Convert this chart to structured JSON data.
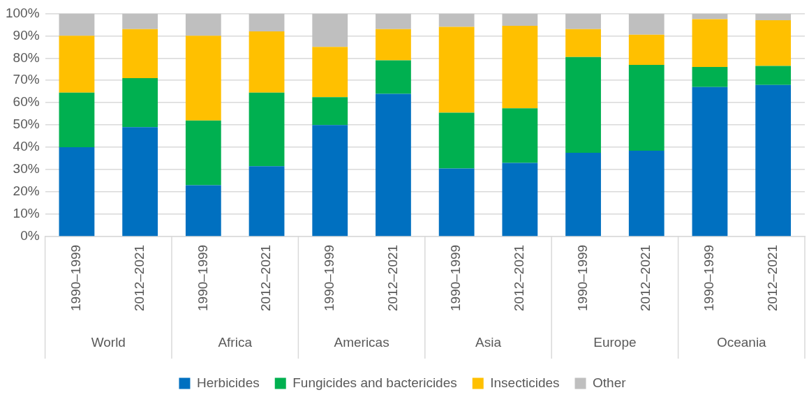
{
  "chart_data": {
    "type": "bar",
    "stacked": true,
    "categories": [
      "1990–1999",
      "2012–2021",
      "1990–1999",
      "2012–2021",
      "1990–1999",
      "2012–2021",
      "1990–1999",
      "2012–2021",
      "1990–1999",
      "2012–2021",
      "1990–1999",
      "2012–2021"
    ],
    "annotations": [
      "World",
      "Africa",
      "Americas",
      "Asia",
      "Europe",
      "Oceania"
    ],
    "series": [
      {
        "name": "Herbicides",
        "color": "#0070c0",
        "values": [
          40,
          49,
          23,
          31.5,
          50,
          64,
          30.5,
          33,
          37.5,
          38.5,
          67,
          68
        ]
      },
      {
        "name": "Fungicides and bactericides",
        "color": "#00b050",
        "values": [
          24.5,
          22,
          29,
          33,
          12.5,
          15,
          25,
          24.5,
          43,
          38.5,
          9,
          8.5
        ]
      },
      {
        "name": "Insecticides",
        "color": "#ffc000",
        "values": [
          25.5,
          22,
          38,
          27.5,
          22.5,
          14,
          38.5,
          37,
          12.5,
          13.5,
          21.5,
          20.5
        ]
      },
      {
        "name": "Other",
        "color": "#bfbfbf",
        "values": [
          10,
          7,
          10,
          8,
          15,
          7,
          6,
          5.5,
          7,
          9.5,
          2.5,
          3
        ]
      }
    ],
    "ylim": [
      0,
      100
    ],
    "yticks": [
      {
        "value": 0,
        "label": "0%"
      },
      {
        "value": 10,
        "label": "10%"
      },
      {
        "value": 20,
        "label": "20%"
      },
      {
        "value": 30,
        "label": "30%"
      },
      {
        "value": 40,
        "label": "40%"
      },
      {
        "value": 50,
        "label": "50%"
      },
      {
        "value": 60,
        "label": "60%"
      },
      {
        "value": 70,
        "label": "70%"
      },
      {
        "value": 80,
        "label": "80%"
      },
      {
        "value": 90,
        "label": "90%"
      },
      {
        "value": 100,
        "label": "100%"
      }
    ],
    "grid": "y",
    "legend": "bottom"
  }
}
